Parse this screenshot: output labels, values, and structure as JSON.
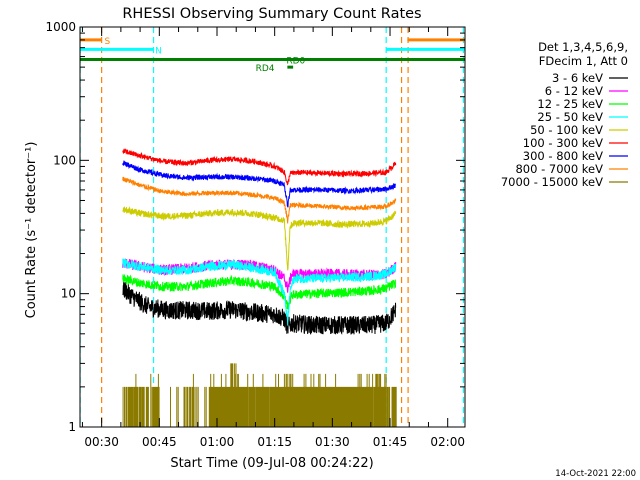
{
  "chart_data": {
    "type": "line",
    "title": "RHESSI Observing Summary Count Rates",
    "xlabel": "Start Time (09-Jul-08 00:24:22)",
    "ylabel": "Count Rate (s⁻¹ detector⁻¹)",
    "yscale": "log",
    "ylim": [
      1,
      1000
    ],
    "xlim_minutes": [
      24.37,
      124.5
    ],
    "x_ticks": [
      {
        "minute": 30,
        "label": "00:30"
      },
      {
        "minute": 45,
        "label": "00:45"
      },
      {
        "minute": 60,
        "label": "01:00"
      },
      {
        "minute": 75,
        "label": "01:15"
      },
      {
        "minute": 90,
        "label": "01:30"
      },
      {
        "minute": 105,
        "label": "01:45"
      },
      {
        "minute": 120,
        "label": "02:00"
      }
    ],
    "y_ticks": [
      {
        "value": 1,
        "label": "1"
      },
      {
        "value": 10,
        "label": "10"
      },
      {
        "value": 100,
        "label": "100"
      },
      {
        "value": 1000,
        "label": "1000"
      }
    ],
    "timestamp": "14-Oct-2021 22:00",
    "legend": {
      "header": [
        "Det 1,3,4,5,6,9,",
        "FDecim 1, Att 0"
      ],
      "position": "right",
      "entries": [
        {
          "label": "3 - 6 keV",
          "color": "#000000"
        },
        {
          "label": "6 - 12 keV",
          "color": "#ff00ff"
        },
        {
          "label": "12 - 25 keV",
          "color": "#00ff00"
        },
        {
          "label": "25 - 50 keV",
          "color": "#00ffff"
        },
        {
          "label": "50 - 100 keV",
          "color": "#cccc00"
        },
        {
          "label": "100 - 300 keV",
          "color": "#ff0000"
        },
        {
          "label": "300 - 800 keV",
          "color": "#0000ff"
        },
        {
          "label": "800 - 7000 keV",
          "color": "#ff8000"
        },
        {
          "label": "7000 - 15000 keV",
          "color": "#8b7a00"
        }
      ]
    },
    "series": [
      {
        "name": "3 - 6 keV",
        "color": "#000000",
        "noise": 0.14,
        "points": [
          [
            35.5,
            11
          ],
          [
            38,
            9.5
          ],
          [
            42,
            8
          ],
          [
            47,
            7.5
          ],
          [
            52,
            7.5
          ],
          [
            58,
            7.4
          ],
          [
            64,
            7.6
          ],
          [
            70,
            7.2
          ],
          [
            75,
            7
          ],
          [
            77.5,
            6.5
          ],
          [
            78.4,
            5.6
          ],
          [
            79.5,
            6
          ],
          [
            85,
            5.8
          ],
          [
            92,
            5.8
          ],
          [
            100,
            5.8
          ],
          [
            104,
            6
          ],
          [
            106.5,
            7.5
          ]
        ]
      },
      {
        "name": "6 - 12 keV",
        "color": "#ff00ff",
        "noise": 0.08,
        "points": [
          [
            35.5,
            17
          ],
          [
            40,
            16
          ],
          [
            46,
            15
          ],
          [
            52,
            15.5
          ],
          [
            60,
            16.5
          ],
          [
            68,
            16.5
          ],
          [
            75,
            15
          ],
          [
            77.5,
            13
          ],
          [
            78.4,
            11
          ],
          [
            79.5,
            14
          ],
          [
            85,
            14
          ],
          [
            92,
            14
          ],
          [
            100,
            13.8
          ],
          [
            104,
            14
          ],
          [
            106.5,
            16
          ]
        ]
      },
      {
        "name": "12 - 25 keV",
        "color": "#00ff00",
        "noise": 0.07,
        "points": [
          [
            35.5,
            13
          ],
          [
            40,
            12
          ],
          [
            46,
            11.3
          ],
          [
            52,
            11.3
          ],
          [
            58,
            12
          ],
          [
            64,
            12.5
          ],
          [
            70,
            12
          ],
          [
            75,
            11.3
          ],
          [
            77.5,
            9.5
          ],
          [
            78.4,
            8
          ],
          [
            79.5,
            9.8
          ],
          [
            85,
            10
          ],
          [
            92,
            10.2
          ],
          [
            100,
            10.5
          ],
          [
            104,
            11
          ],
          [
            106.5,
            12
          ]
        ]
      },
      {
        "name": "25 - 50 keV",
        "color": "#00ffff",
        "noise": 0.07,
        "points": [
          [
            35.5,
            17
          ],
          [
            40,
            16
          ],
          [
            46,
            15
          ],
          [
            52,
            15
          ],
          [
            58,
            16
          ],
          [
            64,
            16.5
          ],
          [
            70,
            15.5
          ],
          [
            75,
            14.5
          ],
          [
            77.5,
            10
          ],
          [
            78.4,
            6
          ],
          [
            79,
            10.5
          ],
          [
            80,
            13
          ],
          [
            85,
            13
          ],
          [
            92,
            13.2
          ],
          [
            100,
            13.5
          ],
          [
            104,
            14
          ],
          [
            106.5,
            16
          ]
        ]
      },
      {
        "name": "50 - 100 keV",
        "color": "#cccc00",
        "noise": 0.05,
        "points": [
          [
            35.5,
            43
          ],
          [
            40,
            40
          ],
          [
            46,
            38
          ],
          [
            52,
            38.5
          ],
          [
            58,
            40
          ],
          [
            64,
            41
          ],
          [
            70,
            39.5
          ],
          [
            75,
            37
          ],
          [
            77.5,
            35.5
          ],
          [
            78.4,
            15
          ],
          [
            79,
            32
          ],
          [
            80,
            34
          ],
          [
            86,
            34
          ],
          [
            92,
            33
          ],
          [
            100,
            33.5
          ],
          [
            104,
            35
          ],
          [
            106.5,
            40
          ]
        ]
      },
      {
        "name": "100 - 300 keV",
        "color": "#ff0000",
        "noise": 0.04,
        "points": [
          [
            35.5,
            118
          ],
          [
            40,
            108
          ],
          [
            46,
            98
          ],
          [
            52,
            95
          ],
          [
            58,
            100
          ],
          [
            64,
            102
          ],
          [
            70,
            98
          ],
          [
            75,
            90
          ],
          [
            77.5,
            82
          ],
          [
            78.4,
            65
          ],
          [
            79,
            80
          ],
          [
            82,
            81
          ],
          [
            88,
            80
          ],
          [
            94,
            79
          ],
          [
            100,
            80
          ],
          [
            104,
            81
          ],
          [
            106.5,
            95
          ]
        ]
      },
      {
        "name": "300 - 800 keV",
        "color": "#0000ff",
        "noise": 0.04,
        "points": [
          [
            35.5,
            96
          ],
          [
            40,
            85
          ],
          [
            46,
            77
          ],
          [
            52,
            74
          ],
          [
            58,
            75
          ],
          [
            64,
            75
          ],
          [
            70,
            73
          ],
          [
            75,
            70
          ],
          [
            77.5,
            66
          ],
          [
            78.4,
            45
          ],
          [
            79,
            60
          ],
          [
            82,
            60
          ],
          [
            88,
            60
          ],
          [
            94,
            59
          ],
          [
            100,
            60
          ],
          [
            104,
            61
          ],
          [
            106.5,
            65
          ]
        ]
      },
      {
        "name": "800 - 7000 keV",
        "color": "#ff8000",
        "noise": 0.035,
        "points": [
          [
            35.5,
            73
          ],
          [
            40,
            65
          ],
          [
            46,
            58
          ],
          [
            52,
            56
          ],
          [
            58,
            57
          ],
          [
            64,
            57
          ],
          [
            70,
            55
          ],
          [
            75,
            52
          ],
          [
            77.5,
            48
          ],
          [
            78.4,
            35
          ],
          [
            79,
            46
          ],
          [
            82,
            46
          ],
          [
            88,
            45
          ],
          [
            94,
            44
          ],
          [
            100,
            44.5
          ],
          [
            104,
            45
          ],
          [
            106.5,
            50
          ]
        ]
      }
    ],
    "flags": [
      {
        "label": "S",
        "color": "#ff8000",
        "start": 24.37,
        "end": 30,
        "value": 800,
        "label_minute": 31.5
      },
      {
        "label": "S",
        "color": "#ff8000",
        "start": 109.5,
        "end": 124.5,
        "value": 800
      },
      {
        "label": "N",
        "color": "#00ffff",
        "start": 24.37,
        "end": 43.5,
        "value": 680,
        "label_minute": 44.8
      },
      {
        "label": "N",
        "color": "#00ffff",
        "start": 104,
        "end": 124.5,
        "value": 680
      },
      {
        "label": "RD0",
        "color": "#008000",
        "start": 24.37,
        "end": 124.5,
        "value": 570,
        "label_minute": 80.5
      },
      {
        "label": "RD4",
        "color": "#008000",
        "start": 78.3,
        "end": 79.8,
        "value": 500,
        "label_minute": 72.5
      }
    ],
    "markers": [
      {
        "minute": 30,
        "color": "#ff8000"
      },
      {
        "minute": 43.5,
        "color": "#00ffff"
      },
      {
        "minute": 24.4,
        "color": "#00ffff"
      },
      {
        "minute": 104,
        "color": "#00ffff"
      },
      {
        "minute": 108,
        "color": "#ff8000"
      },
      {
        "minute": 109.7,
        "color": "#ff8000"
      },
      {
        "minute": 124.1,
        "color": "#00ffff"
      }
    ]
  }
}
